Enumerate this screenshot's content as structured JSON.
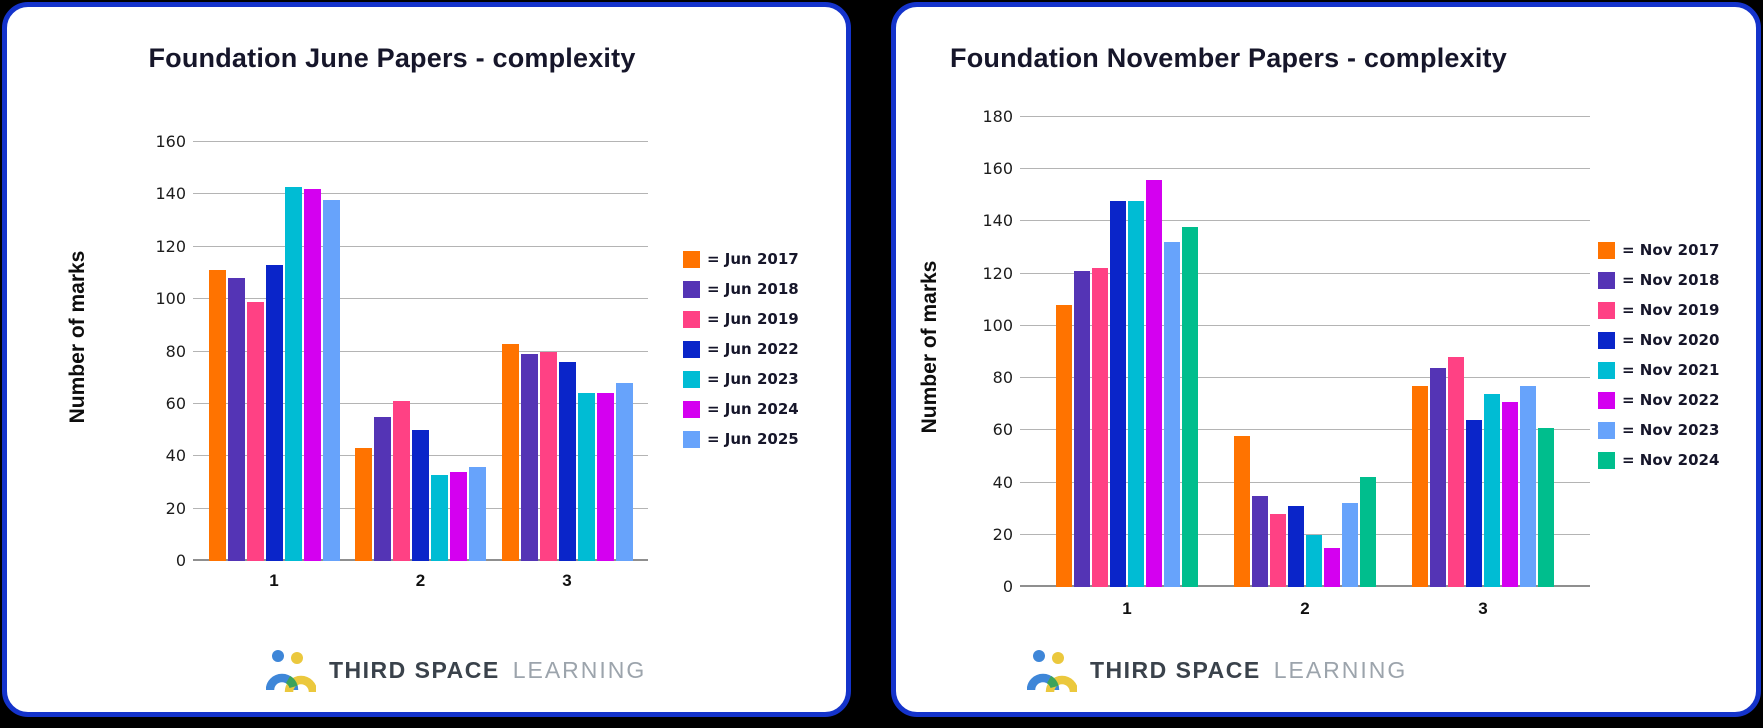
{
  "page": {
    "background": "#000000"
  },
  "colors": {
    "card_border": "#1433CB",
    "card_background": "#FFFFFF",
    "gridline": "#B4B4B4",
    "axis_line": "#8F8F8F",
    "title_text": "#16162A"
  },
  "branding": {
    "icon": "third-space-learning-logo",
    "brand_bold": "THIRD SPACE",
    "brand_light": "LEARNING"
  },
  "chart_data": [
    {
      "type": "bar",
      "title": "Foundation June Papers - complexity",
      "xlabel": "",
      "ylabel": "Number of marks",
      "categories": [
        "1",
        "2",
        "3"
      ],
      "ylim": [
        0,
        160
      ],
      "ytick_step": 20,
      "grid": true,
      "legend_position": "right",
      "series": [
        {
          "name": "Jun 2017",
          "label": "= Jun 2017",
          "color": "#FF7300",
          "values": [
            111,
            43,
            83
          ]
        },
        {
          "name": "Jun 2018",
          "label": "= Jun 2018",
          "color": "#5434B5",
          "values": [
            108,
            55,
            79
          ]
        },
        {
          "name": "Jun 2019",
          "label": "= Jun 2019",
          "color": "#FF4184",
          "values": [
            99,
            61,
            80
          ]
        },
        {
          "name": "Jun 2022",
          "label": "= Jun 2022",
          "color": "#0A25C9",
          "values": [
            113,
            50,
            76
          ]
        },
        {
          "name": "Jun 2023",
          "label": "= Jun 2023",
          "color": "#00BCD4",
          "values": [
            143,
            33,
            64
          ]
        },
        {
          "name": "Jun 2024",
          "label": "= Jun 2024",
          "color": "#D400F0",
          "values": [
            142,
            34,
            64
          ]
        },
        {
          "name": "Jun 2025",
          "label": "= Jun 2025",
          "color": "#67A3FB",
          "values": [
            138,
            36,
            68
          ]
        }
      ]
    },
    {
      "type": "bar",
      "title": "Foundation November Papers - complexity",
      "xlabel": "",
      "ylabel": "Number of marks",
      "categories": [
        "1",
        "2",
        "3"
      ],
      "ylim": [
        0,
        180
      ],
      "ytick_step": 20,
      "grid": true,
      "legend_position": "right",
      "series": [
        {
          "name": "Nov 2017",
          "label": "= Nov 2017",
          "color": "#FF7300",
          "values": [
            108,
            58,
            77
          ]
        },
        {
          "name": "Nov 2018",
          "label": "= Nov 2018",
          "color": "#5434B5",
          "values": [
            121,
            35,
            84
          ]
        },
        {
          "name": "Nov 2019",
          "label": "= Nov 2019",
          "color": "#FF4184",
          "values": [
            122,
            28,
            88
          ]
        },
        {
          "name": "Nov 2020",
          "label": "= Nov 2020",
          "color": "#0A25C9",
          "values": [
            148,
            31,
            64
          ]
        },
        {
          "name": "Nov 2021",
          "label": "= Nov 2021",
          "color": "#00BCD4",
          "values": [
            148,
            20,
            74
          ]
        },
        {
          "name": "Nov 2022",
          "label": "= Nov 2022",
          "color": "#D400F0",
          "values": [
            156,
            15,
            71
          ]
        },
        {
          "name": "Nov 2023",
          "label": "= Nov 2023",
          "color": "#67A3FB",
          "values": [
            132,
            32,
            77
          ]
        },
        {
          "name": "Nov 2024",
          "label": "= Nov 2024",
          "color": "#00BE8D",
          "values": [
            138,
            42,
            61
          ]
        }
      ]
    }
  ]
}
